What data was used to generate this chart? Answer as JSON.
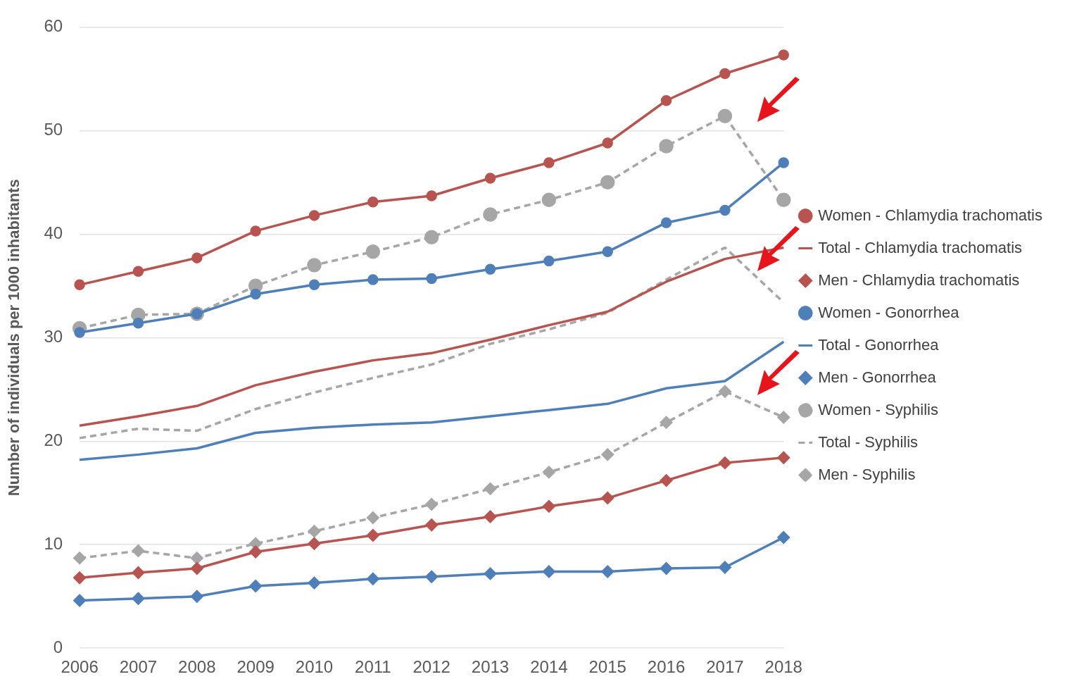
{
  "chart_data": {
    "type": "line",
    "ylabel": "Number of individuals per 1000 inhabitants",
    "categories": [
      "2006",
      "2007",
      "2008",
      "2009",
      "2010",
      "2011",
      "2012",
      "2013",
      "2014",
      "2015",
      "2016",
      "2017",
      "2018"
    ],
    "ylim": [
      0,
      60
    ],
    "yticks": [
      0,
      10,
      20,
      30,
      40,
      50,
      60
    ],
    "grid": "y",
    "legend": "right",
    "series": [
      {
        "name": "Women - Chlamydia trachomatis",
        "color": "#b85450",
        "marker": "circle",
        "line_style": "solid",
        "values": [
          35.1,
          36.4,
          37.7,
          40.3,
          41.8,
          43.1,
          43.7,
          45.4,
          46.9,
          48.8,
          52.9,
          55.5,
          57.3
        ]
      },
      {
        "name": "Total - Chlamydia trachomatis",
        "color": "#b85450",
        "marker": "none",
        "line_style": "solid",
        "values": [
          21.5,
          22.4,
          23.4,
          25.4,
          26.7,
          27.8,
          28.5,
          29.8,
          31.2,
          32.5,
          35.4,
          37.6,
          38.7
        ]
      },
      {
        "name": "Men - Chlamydia trachomatis",
        "color": "#b85450",
        "marker": "diamond",
        "line_style": "solid",
        "values": [
          6.8,
          7.3,
          7.7,
          9.3,
          10.1,
          10.9,
          11.9,
          12.7,
          13.7,
          14.5,
          16.2,
          17.9,
          18.4
        ]
      },
      {
        "name": "Women - Gonorrhea",
        "color": "#4f7fb8",
        "marker": "circle",
        "line_style": "solid",
        "values": [
          30.5,
          31.4,
          32.3,
          34.2,
          35.1,
          35.6,
          35.7,
          36.6,
          37.4,
          38.3,
          41.1,
          42.3,
          46.9
        ]
      },
      {
        "name": "Total - Gonorrhea",
        "color": "#4f7fb8",
        "marker": "none",
        "line_style": "solid",
        "values": [
          18.2,
          18.7,
          19.3,
          20.8,
          21.3,
          21.6,
          21.8,
          22.4,
          23.0,
          23.6,
          25.1,
          25.8,
          29.6
        ]
      },
      {
        "name": "Men - Gonorrhea",
        "color": "#4f7fb8",
        "marker": "diamond",
        "line_style": "solid",
        "values": [
          4.6,
          4.8,
          5.0,
          6.0,
          6.3,
          6.7,
          6.9,
          7.2,
          7.4,
          7.4,
          7.7,
          7.8,
          10.7
        ]
      },
      {
        "name": "Women - Syphilis",
        "color": "#a6a6a6",
        "marker": "circle",
        "line_style": "dashed",
        "values": [
          30.9,
          32.2,
          32.3,
          35.0,
          37.0,
          38.3,
          39.7,
          41.9,
          43.3,
          45.0,
          48.5,
          51.4,
          43.3
        ]
      },
      {
        "name": "Total - Syphilis",
        "color": "#a6a6a6",
        "marker": "none",
        "line_style": "dashed",
        "values": [
          20.3,
          21.2,
          21.0,
          23.1,
          24.7,
          26.1,
          27.4,
          29.4,
          30.8,
          32.4,
          35.6,
          38.7,
          33.4
        ]
      },
      {
        "name": "Men - Syphilis",
        "color": "#a6a6a6",
        "marker": "diamond",
        "line_style": "dashed",
        "values": [
          8.7,
          9.4,
          8.7,
          10.1,
          11.3,
          12.6,
          13.9,
          15.4,
          17.0,
          18.7,
          21.8,
          24.8,
          22.3
        ]
      }
    ]
  }
}
